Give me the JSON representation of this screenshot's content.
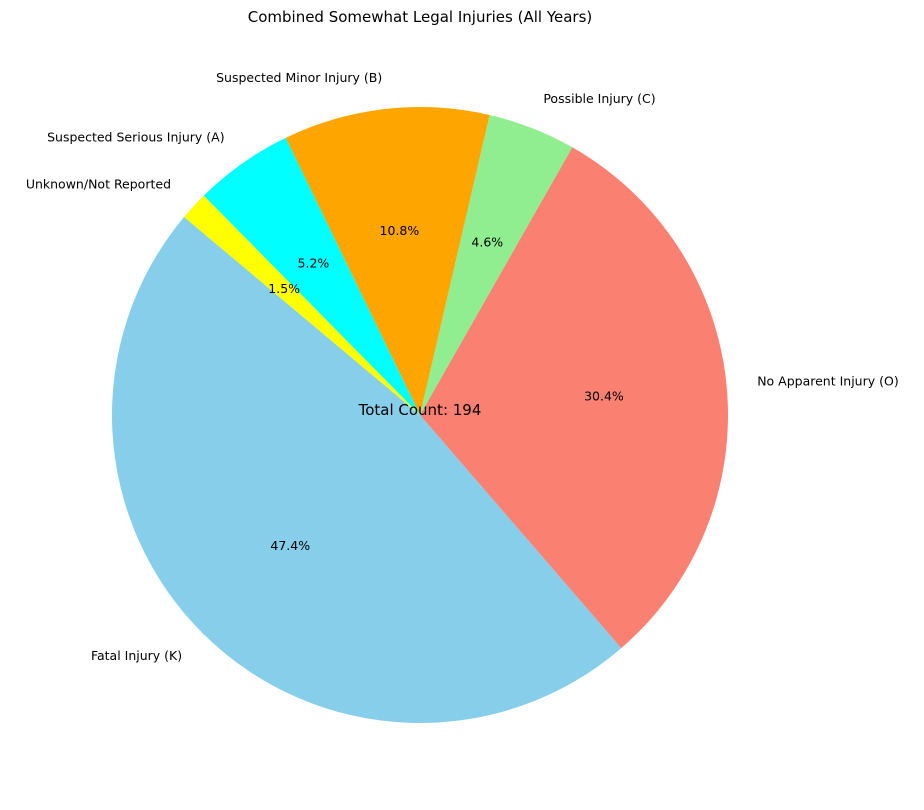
{
  "chart_data": {
    "type": "pie",
    "title": "Combined Somewhat Legal Injuries (All Years)",
    "center_text": "Total Count: 194",
    "start_angle_deg": 140,
    "direction": "counterclockwise",
    "slices": [
      {
        "label": "Fatal Injury (K)",
        "value": 47.4,
        "pct_label": "47.4%",
        "color": "#87CEEB"
      },
      {
        "label": "No Apparent Injury (O)",
        "value": 30.4,
        "pct_label": "30.4%",
        "color": "#FA8072"
      },
      {
        "label": "Possible Injury (C)",
        "value": 4.6,
        "pct_label": "4.6%",
        "color": "#90EE90"
      },
      {
        "label": "Suspected Minor Injury (B)",
        "value": 10.8,
        "pct_label": "10.8%",
        "color": "#FFA500"
      },
      {
        "label": "Suspected Serious Injury (A)",
        "value": 5.2,
        "pct_label": "5.2%",
        "color": "#00FFFF"
      },
      {
        "label": "Unknown/Not Reported",
        "value": 1.5,
        "pct_label": "1.5%",
        "color": "#FFFF00"
      }
    ]
  }
}
